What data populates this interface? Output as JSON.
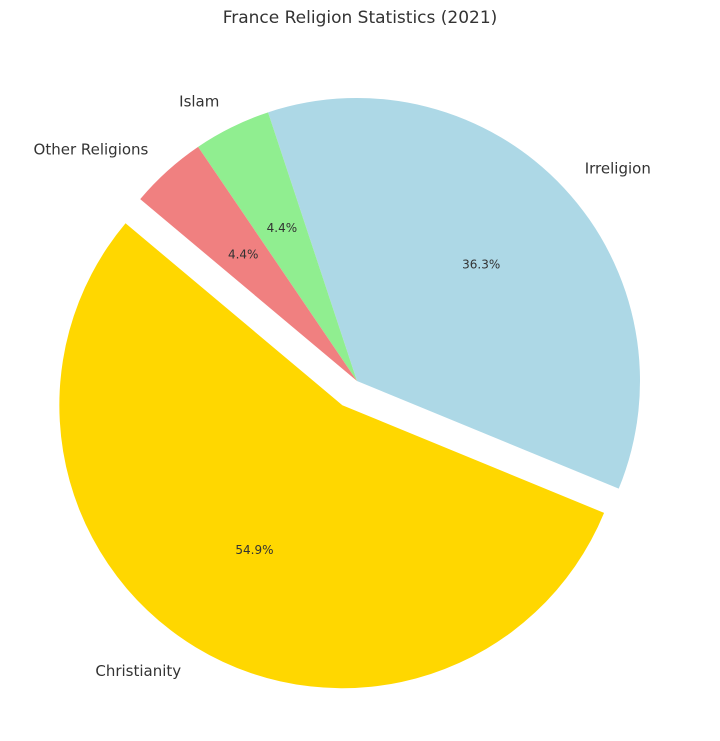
{
  "chart_data": {
    "type": "pie",
    "title": "France Religion Statistics (2021)",
    "categories": [
      "Christianity",
      "Irreligion",
      "Islam",
      "Other Religions"
    ],
    "values": [
      54.9,
      36.3,
      4.4,
      4.4
    ],
    "value_labels": [
      "54.9%",
      "36.3%",
      "4.4%",
      "4.4%"
    ],
    "colors": [
      "#ffd700",
      "#add8e6",
      "#90ee90",
      "#f08080"
    ]
  }
}
